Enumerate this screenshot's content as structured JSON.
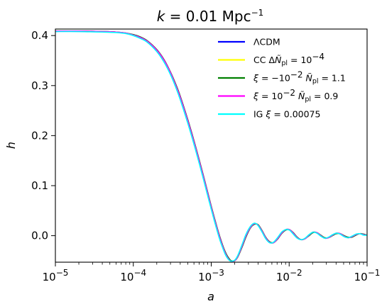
{
  "chart_data": {
    "type": "line",
    "title": {
      "symbol": "k",
      "relation": " = 0.01",
      "unit": "Mpc",
      "unit_exp": "−1"
    },
    "xlabel": "a",
    "ylabel": "h",
    "xscale": "log",
    "xlim": [
      1e-05,
      0.1
    ],
    "ylim": [
      -0.053,
      0.413
    ],
    "x_tick_values": [
      1e-05,
      0.0001,
      0.001,
      0.01,
      0.1
    ],
    "x_ticks": [
      {
        "base": "10",
        "exp": "−5"
      },
      {
        "base": "10",
        "exp": "−4"
      },
      {
        "base": "10",
        "exp": "−3"
      },
      {
        "base": "10",
        "exp": "−2"
      },
      {
        "base": "10",
        "exp": "−1"
      }
    ],
    "y_tick_values": [
      0.0,
      0.1,
      0.2,
      0.3,
      0.4
    ],
    "y_ticks": [
      "0.0",
      "0.1",
      "0.2",
      "0.3",
      "0.4"
    ],
    "grid": false,
    "legend_position": "upper-right",
    "legend": [
      {
        "color": "#0000ff",
        "parts": [
          [
            "n",
            "ΛCDM"
          ]
        ]
      },
      {
        "color": "#ffff00",
        "parts": [
          [
            "n",
            "CC "
          ],
          [
            "n",
            "Δ"
          ],
          [
            "i",
            "Ñ"
          ],
          [
            "sub",
            "pl"
          ],
          [
            "n",
            " = 10"
          ],
          [
            "sup",
            "−4"
          ]
        ]
      },
      {
        "color": "#008000",
        "parts": [
          [
            "i",
            "ξ"
          ],
          [
            "n",
            " = −10"
          ],
          [
            "sup",
            "−2"
          ],
          [
            "n",
            " "
          ],
          [
            "i",
            "Ñ"
          ],
          [
            "sub",
            "pl"
          ],
          [
            "n",
            " = 1.1"
          ]
        ]
      },
      {
        "color": "#ff00ff",
        "parts": [
          [
            "i",
            "ξ"
          ],
          [
            "n",
            " = 10"
          ],
          [
            "sup",
            "−2"
          ],
          [
            "n",
            " "
          ],
          [
            "i",
            "Ñ"
          ],
          [
            "sub",
            "pl"
          ],
          [
            "n",
            " = 0.9"
          ]
        ]
      },
      {
        "color": "#00ffff",
        "parts": [
          [
            "n",
            "IG "
          ],
          [
            "i",
            "ξ"
          ],
          [
            "n",
            " = 0.00075"
          ]
        ]
      }
    ],
    "x": [
      1e-05,
      2e-05,
      4e-05,
      6e-05,
      8e-05,
      0.0001,
      0.00012,
      0.00015,
      0.0002,
      0.00025,
      0.0003,
      0.00035,
      0.0004,
      0.0005,
      0.0006,
      0.0007,
      0.0008,
      0.0009,
      0.001,
      0.0011,
      0.0012,
      0.0013,
      0.0014,
      0.0015,
      0.0016,
      0.0017,
      0.0018,
      0.002,
      0.0022,
      0.0025,
      0.0028,
      0.0032,
      0.0036,
      0.004,
      0.0045,
      0.005,
      0.0056,
      0.0063,
      0.0071,
      0.008,
      0.009,
      0.0101,
      0.0113,
      0.0127,
      0.0143,
      0.016,
      0.018,
      0.0202,
      0.0227,
      0.0255,
      0.0286,
      0.032,
      0.036,
      0.0404,
      0.0453,
      0.0508,
      0.057,
      0.064,
      0.0718,
      0.0806,
      0.0904,
      0.1
    ],
    "series": [
      {
        "color": "#0000ff",
        "values": [
          0.409,
          0.409,
          0.408,
          0.407,
          0.405,
          0.401,
          0.397,
          0.389,
          0.371,
          0.35,
          0.326,
          0.301,
          0.277,
          0.23,
          0.188,
          0.15,
          0.116,
          0.085,
          0.057,
          0.033,
          0.012,
          -0.006,
          -0.021,
          -0.033,
          -0.042,
          -0.048,
          -0.051,
          -0.05,
          -0.041,
          -0.02,
          0.0,
          0.017,
          0.024,
          0.021,
          0.009,
          -0.004,
          -0.013,
          -0.014,
          -0.006,
          0.005,
          0.012,
          0.012,
          0.005,
          -0.004,
          -0.008,
          -0.006,
          0.001,
          0.007,
          0.006,
          0.0,
          -0.005,
          -0.004,
          0.001,
          0.005,
          0.004,
          -0.001,
          -0.004,
          -0.002,
          0.002,
          0.004,
          0.002,
          0.001
        ]
      },
      {
        "color": "#ffff00",
        "values": [
          0.409,
          0.409,
          0.408,
          0.407,
          0.405,
          0.401,
          0.397,
          0.389,
          0.371,
          0.35,
          0.326,
          0.301,
          0.277,
          0.23,
          0.188,
          0.15,
          0.116,
          0.085,
          0.057,
          0.033,
          0.012,
          -0.006,
          -0.021,
          -0.033,
          -0.042,
          -0.048,
          -0.051,
          -0.05,
          -0.041,
          -0.02,
          0.0,
          0.017,
          0.024,
          0.021,
          0.009,
          -0.004,
          -0.013,
          -0.014,
          -0.006,
          0.005,
          0.012,
          0.012,
          0.005,
          -0.004,
          -0.008,
          -0.006,
          0.001,
          0.007,
          0.006,
          0.0,
          -0.005,
          -0.004,
          0.001,
          0.005,
          0.004,
          -0.001,
          -0.004,
          -0.002,
          0.002,
          0.004,
          0.002,
          0.001
        ]
      },
      {
        "color": "#008000",
        "values": [
          0.409,
          0.409,
          0.408,
          0.407,
          0.405,
          0.402,
          0.398,
          0.39,
          0.372,
          0.351,
          0.327,
          0.303,
          0.279,
          0.232,
          0.19,
          0.152,
          0.118,
          0.087,
          0.059,
          0.035,
          0.014,
          -0.004,
          -0.019,
          -0.031,
          -0.04,
          -0.046,
          -0.05,
          -0.05,
          -0.042,
          -0.022,
          -0.002,
          0.016,
          0.023,
          0.022,
          0.01,
          -0.003,
          -0.012,
          -0.014,
          -0.007,
          0.004,
          0.011,
          0.012,
          0.006,
          -0.003,
          -0.008,
          -0.006,
          0.0,
          0.006,
          0.006,
          0.001,
          -0.004,
          -0.004,
          0.0,
          0.004,
          0.004,
          0.0,
          -0.003,
          -0.003,
          0.001,
          0.004,
          0.003,
          0.001
        ]
      },
      {
        "color": "#ff00ff",
        "values": [
          0.409,
          0.409,
          0.408,
          0.407,
          0.405,
          0.401,
          0.397,
          0.389,
          0.371,
          0.35,
          0.326,
          0.301,
          0.277,
          0.23,
          0.188,
          0.15,
          0.116,
          0.085,
          0.057,
          0.033,
          0.012,
          -0.006,
          -0.021,
          -0.033,
          -0.042,
          -0.048,
          -0.051,
          -0.05,
          -0.041,
          -0.02,
          0.0,
          0.017,
          0.024,
          0.021,
          0.009,
          -0.004,
          -0.013,
          -0.014,
          -0.006,
          0.005,
          0.012,
          0.012,
          0.005,
          -0.004,
          -0.008,
          -0.006,
          0.001,
          0.007,
          0.006,
          0.0,
          -0.005,
          -0.004,
          0.001,
          0.005,
          0.004,
          -0.001,
          -0.004,
          -0.002,
          0.002,
          0.004,
          0.002,
          0.001
        ]
      },
      {
        "color": "#00ffff",
        "values": [
          0.408,
          0.408,
          0.407,
          0.406,
          0.404,
          0.4,
          0.395,
          0.387,
          0.368,
          0.346,
          0.322,
          0.297,
          0.272,
          0.225,
          0.183,
          0.145,
          0.111,
          0.08,
          0.053,
          0.029,
          0.008,
          -0.01,
          -0.024,
          -0.036,
          -0.044,
          -0.049,
          -0.051,
          -0.049,
          -0.039,
          -0.017,
          0.003,
          0.019,
          0.025,
          0.02,
          0.007,
          -0.006,
          -0.014,
          -0.013,
          -0.004,
          0.007,
          0.012,
          0.011,
          0.003,
          -0.005,
          -0.008,
          -0.005,
          0.002,
          0.007,
          0.005,
          -0.001,
          -0.005,
          -0.003,
          0.002,
          0.005,
          0.003,
          -0.002,
          -0.004,
          -0.001,
          0.003,
          0.004,
          0.001,
          0.001
        ]
      }
    ]
  }
}
